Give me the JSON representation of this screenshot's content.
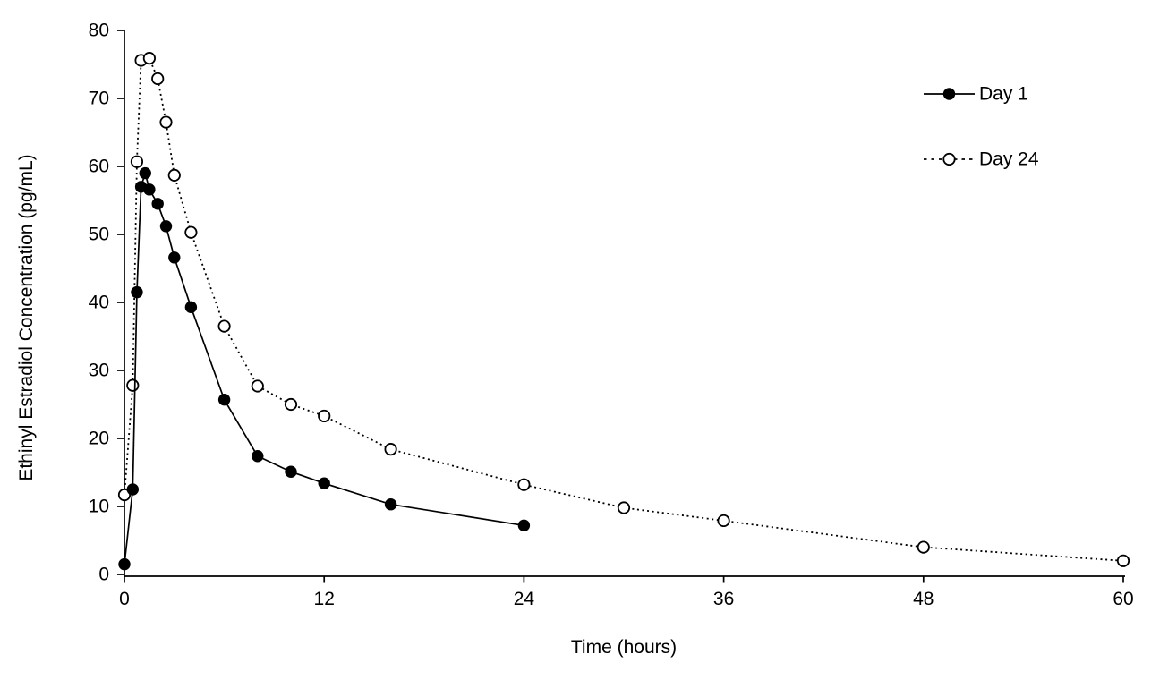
{
  "figure": {
    "background_color": "#ffffff",
    "ink_color": "#000000",
    "marker_fill_open": "#ffffff"
  },
  "chart_data": {
    "type": "line",
    "title": "",
    "xlabel": "Time (hours)",
    "ylabel": "Ethinyl Estradiol Concentration (pg/mL)",
    "xlim": [
      0,
      60
    ],
    "ylim": [
      0,
      80
    ],
    "x_ticks": [
      0,
      12,
      24,
      36,
      48,
      60
    ],
    "y_ticks": [
      0,
      10,
      20,
      30,
      40,
      50,
      60,
      70,
      80
    ],
    "grid": false,
    "legend_position": "upper-right",
    "series": [
      {
        "name": "Day 1",
        "line_style": "solid",
        "marker": "filled-circle",
        "color": "#000000",
        "x": [
          0,
          0.5,
          0.75,
          1,
          1.25,
          1.5,
          2,
          2.5,
          3,
          4,
          6,
          8,
          10,
          12,
          16,
          24
        ],
        "y": [
          1.5,
          12.5,
          41.5,
          57.0,
          59.0,
          56.6,
          54.5,
          51.2,
          46.6,
          39.3,
          25.7,
          17.4,
          15.1,
          13.4,
          10.3,
          7.2
        ]
      },
      {
        "name": "Day 24",
        "line_style": "dashed",
        "marker": "open-circle",
        "color": "#000000",
        "x": [
          0,
          0.5,
          0.75,
          1,
          1.5,
          2,
          2.5,
          3,
          4,
          6,
          8,
          10,
          12,
          16,
          24,
          30,
          36,
          48,
          60
        ],
        "y": [
          11.7,
          27.8,
          60.7,
          75.6,
          75.9,
          72.9,
          66.5,
          58.7,
          50.3,
          36.5,
          27.7,
          25.0,
          23.3,
          18.4,
          13.2,
          9.8,
          7.9,
          4.0,
          2.0
        ]
      }
    ]
  }
}
